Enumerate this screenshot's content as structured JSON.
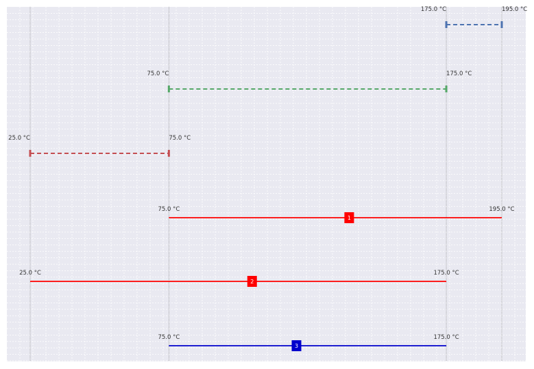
{
  "colors": {
    "background": "#e9e9f1",
    "grid": "#ffffff",
    "guide": "#888888",
    "dashed": [
      "#4c72b0",
      "#55a868",
      "#c44e52"
    ],
    "red": "#ff0000",
    "blue": "#0000cc",
    "label": "#333333"
  },
  "diagram": {
    "guides": [
      25.0,
      75.0,
      175.0,
      195.0
    ],
    "dashed_segments": [
      {
        "start": 175.0,
        "end": 195.0,
        "start_label": "175.0 °C",
        "end_label": "195.0 °C",
        "color": "#4c72b0"
      },
      {
        "start": 75.0,
        "end": 175.0,
        "start_label": "75.0 °C",
        "end_label": "175.0 °C",
        "color": "#55a868"
      },
      {
        "start": 25.0,
        "end": 75.0,
        "start_label": "25.0 °C",
        "end_label": "75.0 °C",
        "color": "#c44e52"
      }
    ],
    "solid_segments": [
      {
        "start": 75.0,
        "end": 195.0,
        "start_label": "75.0 °C",
        "end_label": "195.0 °C",
        "color": "#ff0000",
        "badge": "1",
        "badge_pos": 140.0
      },
      {
        "start": 25.0,
        "end": 175.0,
        "start_label": "25.0 °C",
        "end_label": "175.0 °C",
        "color": "#ff0000",
        "badge": "2",
        "badge_pos": 105.0
      },
      {
        "start": 75.0,
        "end": 175.0,
        "start_label": "75.0 °C",
        "end_label": "175.0 °C",
        "color": "#0000cc",
        "badge": "3",
        "badge_pos": 121.0
      }
    ]
  }
}
